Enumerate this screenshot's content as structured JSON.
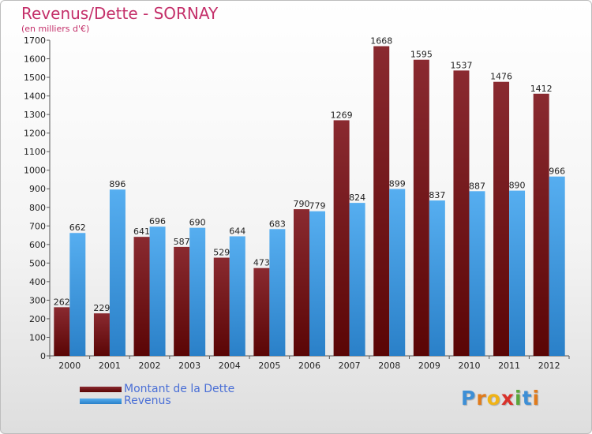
{
  "title": "Revenus/Dette - SORNAY",
  "subtitle": "(en milliers d'€)",
  "logo": {
    "letters": [
      {
        "ch": "P",
        "color": "#3d8fd6"
      },
      {
        "ch": "r",
        "color": "#e07b1c"
      },
      {
        "ch": "o",
        "color": "#f0b316"
      },
      {
        "ch": "x",
        "color": "#d9312a"
      },
      {
        "ch": "i",
        "color": "#5aa63a"
      },
      {
        "ch": "t",
        "color": "#3d8fd6"
      },
      {
        "ch": "i",
        "color": "#e07b1c"
      }
    ]
  },
  "colors": {
    "dette": "#6e1010",
    "revenus": "#3e96dc",
    "axis_text": "#222222"
  },
  "chart_data": {
    "type": "bar",
    "title": "Revenus/Dette - SORNAY",
    "subtitle": "(en milliers d'€)",
    "categories": [
      "2000",
      "2001",
      "2002",
      "2003",
      "2004",
      "2005",
      "2006",
      "2007",
      "2008",
      "2009",
      "2010",
      "2011",
      "2012"
    ],
    "series": [
      {
        "name": "Montant de la Dette",
        "values": [
          262,
          229,
          641,
          587,
          529,
          473,
          790,
          1269,
          1668,
          1595,
          1537,
          1476,
          1412
        ]
      },
      {
        "name": "Revenus",
        "values": [
          662,
          896,
          696,
          690,
          644,
          683,
          779,
          824,
          899,
          837,
          887,
          890,
          966
        ]
      }
    ],
    "ylim": [
      0,
      1700
    ],
    "ytick_step": 100,
    "grid": false,
    "legend_position": "bottom-left"
  }
}
